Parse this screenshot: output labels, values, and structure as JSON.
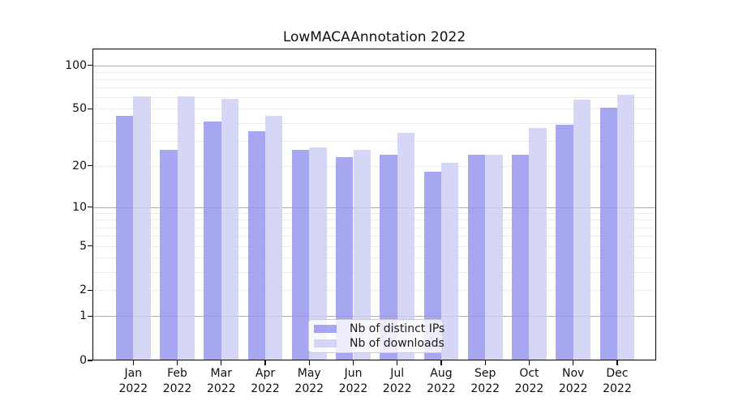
{
  "chart_data": {
    "type": "bar",
    "title": "LowMACAAnnotation 2022",
    "categories": [
      "Jan 2022",
      "Feb 2022",
      "Mar 2022",
      "Apr 2022",
      "May 2022",
      "Jun 2022",
      "Jul 2022",
      "Aug 2022",
      "Sep 2022",
      "Oct 2022",
      "Nov 2022",
      "Dec 2022"
    ],
    "series": [
      {
        "name": "Nb of distinct IPs",
        "color": "rgba(150,150,238,0.85)",
        "values": [
          45,
          26,
          41,
          35,
          26,
          23,
          24,
          18,
          24,
          24,
          39,
          51
        ]
      },
      {
        "name": "Nb of downloads",
        "color": "rgba(205,205,245,0.82)",
        "values": [
          61,
          61,
          59,
          45,
          27,
          26,
          34,
          21,
          24,
          37,
          58,
          63
        ]
      }
    ],
    "yscale": "log1p",
    "ylim": [
      0,
      130
    ],
    "y_ticks": [
      100,
      50,
      20,
      10,
      5,
      2,
      1,
      0
    ],
    "grid": {
      "minor_values": [
        2,
        3,
        4,
        5,
        6,
        7,
        8,
        9,
        20,
        30,
        40,
        50,
        60,
        70,
        80,
        90
      ],
      "major_values": [
        1,
        10,
        100
      ]
    },
    "legend_position": "lower center",
    "xlabel": "",
    "ylabel": ""
  },
  "colors": {
    "background": "#ffffff",
    "axis": "#000000",
    "minor_grid": "#ececec",
    "major_grid": "#adadad"
  }
}
